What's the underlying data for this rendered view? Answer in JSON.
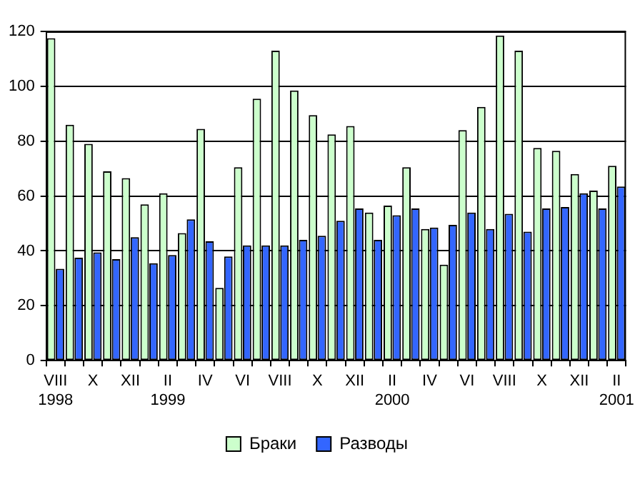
{
  "chart_data": {
    "type": "bar",
    "categories": [
      "VIII\n1998",
      null,
      "X",
      null,
      "XII",
      null,
      "II\n1999",
      null,
      "IV",
      null,
      "VI",
      null,
      "VIII",
      null,
      "X",
      null,
      "XII",
      null,
      "II\n2000",
      null,
      "IV",
      null,
      "VI",
      null,
      "VIII",
      null,
      "X",
      null,
      "XII",
      null,
      "II\n2001"
    ],
    "series": [
      {
        "name": "Браки",
        "color": "#ccffcc",
        "values": [
          117.5,
          86,
          79,
          69,
          66.5,
          57,
          61,
          46.5,
          84.5,
          26.5,
          70.5,
          95.5,
          113,
          98.5,
          89.5,
          82.5,
          85.5,
          54,
          56.5,
          70.5,
          48,
          35,
          84,
          92.5,
          118.5,
          113,
          77.5,
          76.5,
          68,
          62,
          71
        ]
      },
      {
        "name": "Разводы",
        "color": "#3366ff",
        "values": [
          33.5,
          37.5,
          39.5,
          37,
          45,
          35.5,
          38.5,
          51.5,
          43.5,
          38,
          42,
          42,
          42,
          44,
          45.5,
          51,
          55.5,
          44,
          53,
          55.5,
          48.5,
          49.5,
          54,
          48,
          53.5,
          47,
          55.5,
          56,
          61,
          55.5,
          63.5
        ]
      }
    ],
    "ylim": [
      0,
      120
    ],
    "yticks": [
      0,
      20,
      40,
      60,
      80,
      100,
      120
    ],
    "grid": "y",
    "legend": "bottom"
  }
}
